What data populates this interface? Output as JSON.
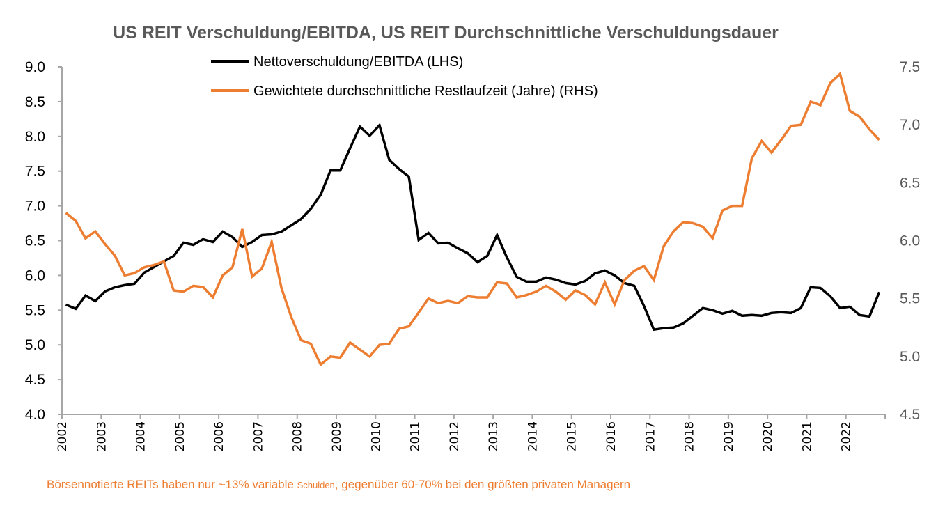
{
  "chart_data": {
    "type": "line",
    "title": "US REIT Verschuldung/EBITDA, US REIT Durchschnittliche Verschuldungsdauer",
    "xlabel": "",
    "ylabel_left": "",
    "ylabel_right": "",
    "ylim_left": [
      4.0,
      9.0
    ],
    "ylim_right": [
      4.5,
      7.5
    ],
    "yticks_left": [
      "4.0",
      "4.5",
      "5.0",
      "5.5",
      "6.0",
      "6.5",
      "7.0",
      "7.5",
      "8.0",
      "8.5",
      "9.0"
    ],
    "yticks_right": [
      "4.5",
      "5.0",
      "5.5",
      "6.0",
      "6.5",
      "7.0",
      "7.5"
    ],
    "xticks": [
      "2002",
      "2003",
      "2004",
      "2005",
      "2006",
      "2007",
      "2008",
      "2009",
      "2010",
      "2011",
      "2012",
      "2013",
      "2014",
      "2015",
      "2016",
      "2017",
      "2018",
      "2019",
      "2020",
      "2021",
      "2022"
    ],
    "x_start_year": 2002,
    "x_end_year": 2023,
    "points_per_year": 4,
    "grid": false,
    "legend_position": "top-center",
    "series": [
      {
        "name": "Nettoverschuldung/EBITDA (LHS)",
        "axis": "left",
        "color": "#000000",
        "values": [
          5.58,
          5.52,
          5.71,
          5.63,
          5.77,
          5.83,
          5.86,
          5.88,
          6.04,
          6.12,
          6.2,
          6.28,
          6.47,
          6.44,
          6.52,
          6.48,
          6.63,
          6.55,
          6.41,
          6.48,
          6.58,
          6.59,
          6.63,
          6.72,
          6.81,
          6.96,
          7.16,
          7.51,
          7.51,
          7.83,
          8.14,
          8.01,
          8.16,
          7.66,
          7.53,
          7.42,
          6.51,
          6.61,
          6.46,
          6.47,
          6.39,
          6.32,
          6.19,
          6.28,
          6.58,
          6.26,
          5.98,
          5.91,
          5.91,
          5.97,
          5.94,
          5.89,
          5.87,
          5.92,
          6.03,
          6.07,
          6.0,
          5.89,
          5.85,
          5.56,
          5.22,
          5.24,
          5.25,
          5.31,
          5.42,
          5.53,
          5.5,
          5.45,
          5.49,
          5.42,
          5.43,
          5.42,
          5.46,
          5.47,
          5.46,
          5.53,
          5.83,
          5.82,
          5.7,
          5.53,
          5.55,
          5.43,
          5.41,
          5.76
        ]
      },
      {
        "name": "Gewichtete durchschnittliche Restlaufzeit (Jahre) (RHS)",
        "axis": "right",
        "color": "#ED7D31",
        "values": [
          6.24,
          6.17,
          6.02,
          6.08,
          5.97,
          5.87,
          5.7,
          5.72,
          5.77,
          5.79,
          5.82,
          5.57,
          5.56,
          5.61,
          5.6,
          5.51,
          5.7,
          5.77,
          6.1,
          5.69,
          5.76,
          5.99,
          5.59,
          5.34,
          5.14,
          5.11,
          4.93,
          5.0,
          4.99,
          5.12,
          5.06,
          5.0,
          5.1,
          5.11,
          5.24,
          5.26,
          5.38,
          5.5,
          5.46,
          5.48,
          5.46,
          5.52,
          5.51,
          5.51,
          5.64,
          5.63,
          5.51,
          5.53,
          5.56,
          5.61,
          5.56,
          5.49,
          5.57,
          5.53,
          5.45,
          5.64,
          5.45,
          5.66,
          5.74,
          5.78,
          5.66,
          5.95,
          6.08,
          6.16,
          6.15,
          6.12,
          6.02,
          6.26,
          6.3,
          6.3,
          6.71,
          6.86,
          6.76,
          6.87,
          6.99,
          7.0,
          7.2,
          7.17,
          7.36,
          7.44,
          7.12,
          7.07,
          6.96,
          6.87
        ]
      }
    ],
    "annotation": {
      "part1": "Börsennotierte REITs haben nur ~13% variable ",
      "part2": "Schulden",
      "part3": ", gegenüber 60-70% bei den größten privaten Managern"
    }
  }
}
